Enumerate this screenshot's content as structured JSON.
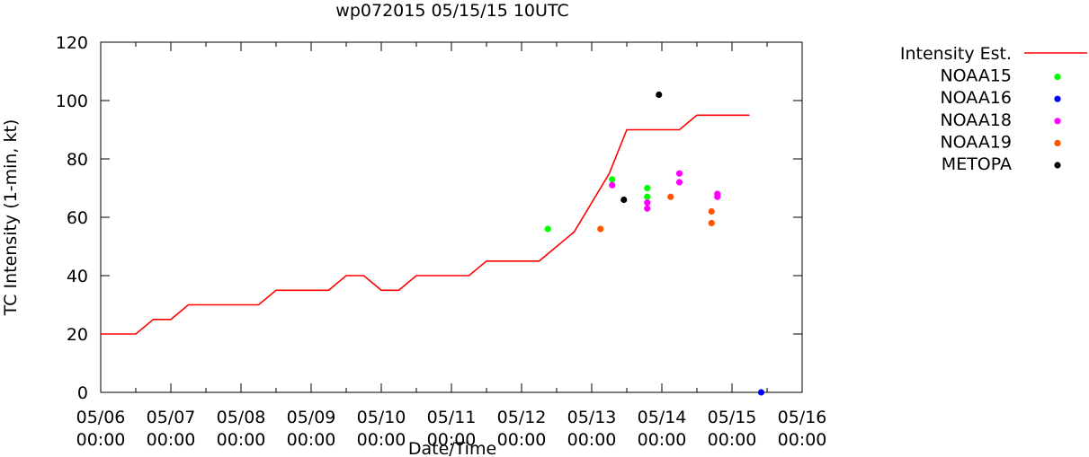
{
  "chart_data": {
    "type": "scatter",
    "title": "wp072015 05/15/15 10UTC",
    "xlabel": "Date/Time",
    "ylabel": "TC Intensity (1-min, kt)",
    "ylim": [
      0,
      120
    ],
    "yticks": [
      0,
      20,
      40,
      60,
      80,
      100,
      120
    ],
    "xlim": [
      "05/06 00:00",
      "05/16 00:00"
    ],
    "xticks": [
      {
        "top": "05/06",
        "bottom": "00:00"
      },
      {
        "top": "05/07",
        "bottom": "00:00"
      },
      {
        "top": "05/08",
        "bottom": "00:00"
      },
      {
        "top": "05/09",
        "bottom": "00:00"
      },
      {
        "top": "05/10",
        "bottom": "00:00"
      },
      {
        "top": "05/11",
        "bottom": "00:00"
      },
      {
        "top": "05/12",
        "bottom": "00:00"
      },
      {
        "top": "05/13",
        "bottom": "00:00"
      },
      {
        "top": "05/14",
        "bottom": "00:00"
      },
      {
        "top": "05/15",
        "bottom": "00:00"
      },
      {
        "top": "05/16",
        "bottom": "00:00"
      }
    ],
    "legend_position": "outside-right",
    "grid": false,
    "series": [
      {
        "name": "Intensity Est.",
        "style": "line",
        "color": "#ff0000",
        "points": [
          [
            "05/06 00:00",
            20
          ],
          [
            "05/06 12:00",
            20
          ],
          [
            "05/06 18:00",
            25
          ],
          [
            "05/07 00:00",
            25
          ],
          [
            "05/07 06:00",
            30
          ],
          [
            "05/08 06:00",
            30
          ],
          [
            "05/08 12:00",
            35
          ],
          [
            "05/09 06:00",
            35
          ],
          [
            "05/09 12:00",
            40
          ],
          [
            "05/09 18:00",
            40
          ],
          [
            "05/10 00:00",
            35
          ],
          [
            "05/10 06:00",
            35
          ],
          [
            "05/10 12:00",
            40
          ],
          [
            "05/11 06:00",
            40
          ],
          [
            "05/11 12:00",
            45
          ],
          [
            "05/12 06:00",
            45
          ],
          [
            "05/12 18:00",
            55
          ],
          [
            "05/13 06:00",
            75
          ],
          [
            "05/13 12:00",
            90
          ],
          [
            "05/14 06:00",
            90
          ],
          [
            "05/14 12:00",
            95
          ],
          [
            "05/15 06:00",
            95
          ]
        ]
      },
      {
        "name": "NOAA15",
        "style": "points",
        "color": "#00ff00",
        "points": [
          [
            "05/12 09:00",
            56
          ],
          [
            "05/13 07:00",
            73
          ],
          [
            "05/13 19:00",
            70
          ],
          [
            "05/13 19:00",
            67
          ]
        ]
      },
      {
        "name": "NOAA16",
        "style": "points",
        "color": "#0000ff",
        "points": [
          [
            "05/15 10:00",
            0
          ]
        ]
      },
      {
        "name": "NOAA18",
        "style": "points",
        "color": "#ff00ff",
        "points": [
          [
            "05/13 07:00",
            71
          ],
          [
            "05/13 19:00",
            65
          ],
          [
            "05/13 19:00",
            63
          ],
          [
            "05/14 06:00",
            75
          ],
          [
            "05/14 06:00",
            72
          ],
          [
            "05/14 19:00",
            68
          ],
          [
            "05/14 19:00",
            67
          ]
        ]
      },
      {
        "name": "NOAA19",
        "style": "points",
        "color": "#ff5500",
        "points": [
          [
            "05/13 03:00",
            56
          ],
          [
            "05/14 03:00",
            67
          ],
          [
            "05/14 17:00",
            62
          ],
          [
            "05/14 17:00",
            58
          ]
        ]
      },
      {
        "name": "METOPA",
        "style": "points",
        "color": "#000000",
        "points": [
          [
            "05/13 11:00",
            66
          ],
          [
            "05/13 23:00",
            102
          ]
        ]
      }
    ]
  }
}
